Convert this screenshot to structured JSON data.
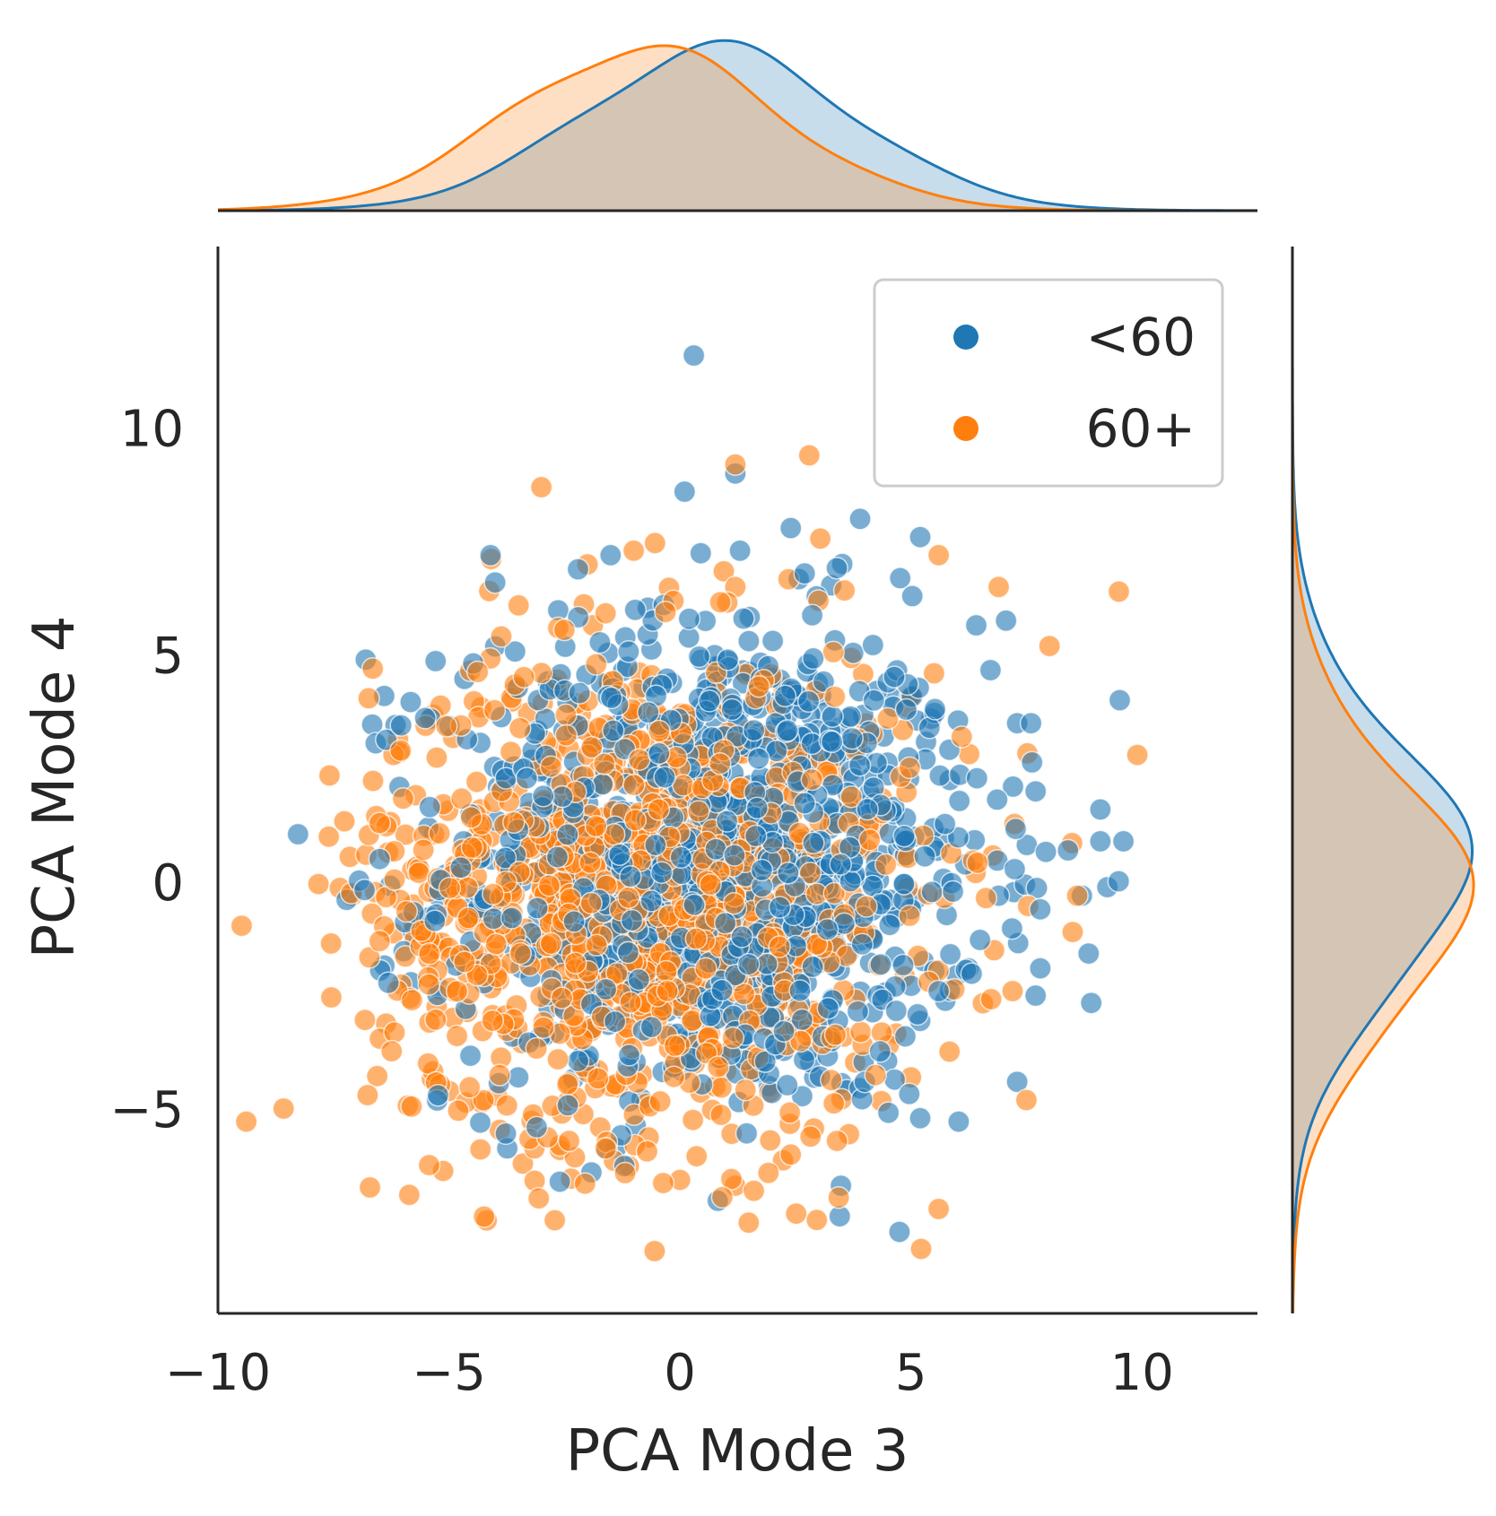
{
  "chart_data": {
    "type": "scatter",
    "title": "",
    "xlabel": "PCA Mode 3",
    "ylabel": "PCA Mode 4",
    "xlim": [
      -10,
      12.5
    ],
    "ylim": [
      -9.5,
      14
    ],
    "xticks": [
      -10,
      -5,
      0,
      5,
      10
    ],
    "xtick_labels": [
      "−10",
      "−5",
      "0",
      "5",
      "10"
    ],
    "yticks": [
      -5,
      0,
      5,
      10
    ],
    "ytick_labels": [
      "−5",
      "0",
      "5",
      "10"
    ],
    "grid": false,
    "legend_position": "top-right",
    "marginals": "kde",
    "series": [
      {
        "name": "<60",
        "color": "#1f77b4",
        "center": [
          0.8,
          0.4
        ],
        "spread": [
          2.9,
          2.7
        ],
        "n_points": 1150,
        "points": [
          [
            0.3,
            11.6
          ],
          [
            0.1,
            8.6
          ],
          [
            1.2,
            9.0
          ],
          [
            3.9,
            8.0
          ],
          [
            5.2,
            7.6
          ],
          [
            2.4,
            7.8
          ],
          [
            1.3,
            7.3
          ],
          [
            2.7,
            6.8
          ],
          [
            -4.1,
            7.2
          ],
          [
            -4.0,
            6.6
          ],
          [
            -1.5,
            7.2
          ],
          [
            -6.8,
            4.9
          ],
          [
            -6.4,
            4.1
          ],
          [
            -5.4,
            3.6
          ],
          [
            9.1,
            1.6
          ],
          [
            9.1,
            0.9
          ],
          [
            9.6,
            0.9
          ],
          [
            8.4,
            0.7
          ],
          [
            7.3,
            3.5
          ],
          [
            7.6,
            3.5
          ],
          [
            7.7,
            2.0
          ],
          [
            7.3,
            -4.4
          ],
          [
            5.2,
            -5.2
          ],
          [
            -2.6,
            -6.6
          ],
          [
            -3.1,
            -5.4
          ],
          [
            -3.5,
            -4.3
          ],
          [
            0.2,
            5.8
          ],
          [
            4.5,
            4.4
          ],
          [
            5.4,
            3.4
          ],
          [
            4.9,
            3.8
          ],
          [
            8.7,
            -0.3
          ],
          [
            7.8,
            -0.6
          ],
          [
            6.9,
            -0.3
          ],
          [
            7.7,
            -2.5
          ],
          [
            7.8,
            -1.9
          ],
          [
            4.0,
            -4.4
          ],
          [
            5.6,
            -2.4
          ]
        ]
      },
      {
        "name": "60+",
        "color": "#ff7f0e",
        "center": [
          -0.8,
          -0.3
        ],
        "spread": [
          2.9,
          2.7
        ],
        "n_points": 1150,
        "points": [
          [
            2.8,
            9.4
          ],
          [
            1.2,
            9.2
          ],
          [
            -3.0,
            8.7
          ],
          [
            -1.0,
            7.3
          ],
          [
            -2.0,
            7.0
          ],
          [
            1.2,
            6.5
          ],
          [
            3.0,
            6.2
          ],
          [
            5.6,
            7.2
          ],
          [
            6.9,
            6.5
          ],
          [
            9.5,
            6.4
          ],
          [
            -7.6,
            1.0
          ],
          [
            -7.1,
            -0.3
          ],
          [
            -6.5,
            -1.3
          ],
          [
            9.9,
            2.8
          ],
          [
            8.6,
            -0.3
          ],
          [
            8.5,
            -1.1
          ],
          [
            7.2,
            -2.4
          ],
          [
            7.5,
            -4.8
          ],
          [
            5.6,
            -7.2
          ],
          [
            1.6,
            -6.8
          ],
          [
            -3.4,
            -6.2
          ],
          [
            -2.6,
            -5.9
          ],
          [
            8.0,
            5.2
          ],
          [
            5.5,
            4.6
          ],
          [
            5.0,
            4.1
          ],
          [
            6.1,
            3.2
          ],
          [
            -6.2,
            2.8
          ],
          [
            -6.5,
            1.3
          ],
          [
            -5.8,
            -2.6
          ],
          [
            -5.0,
            -4.6
          ],
          [
            -2.4,
            -5.7
          ],
          [
            2.4,
            -6.0
          ],
          [
            3.4,
            -5.7
          ],
          [
            5.0,
            -4.3
          ],
          [
            6.4,
            0.2
          ],
          [
            6.8,
            -1.5
          ]
        ]
      }
    ]
  }
}
